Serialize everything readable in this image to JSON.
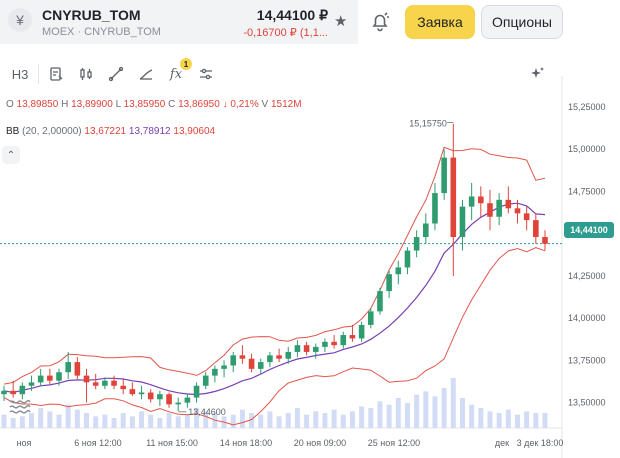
{
  "header": {
    "ticker": "CNYRUB_TOM",
    "exchange": "MOEX · CNYRUB_TOM",
    "price": "14,44100 ₽",
    "change": "-0,16700 ₽ (1,1...",
    "order_button": "Заявка",
    "options_button": "Опционы"
  },
  "toolbar": {
    "timeframe": "Н3",
    "indicator_badge": "1",
    "items": [
      "Н3",
      "draw-chart",
      "candles",
      "line-tool",
      "trend",
      "fx",
      "settings",
      "magic"
    ]
  },
  "ohlc": {
    "o_label": "O",
    "o": "13,89850",
    "h_label": "H",
    "h": "13,89900",
    "l_label": "L",
    "l": "13,85950",
    "c_label": "C",
    "c": "13,86950",
    "change": "↓ 0,21%",
    "v_label": "V",
    "v": "1512M"
  },
  "bb": {
    "label": "BB",
    "params": "(20, 2,00000)",
    "lower": "13,67221",
    "middle": "13,78912",
    "upper": "13,90604"
  },
  "price_tag": "14,44100",
  "annotations": {
    "high_label": "15,15750",
    "low_label": "13,44600"
  },
  "colors": {
    "up": "#2e9c6f",
    "down": "#e0433a",
    "bb_band": "#e0564d",
    "bb_mid": "#7a3fb3",
    "volume": "#d3dcf5",
    "current": "#2e9c8f",
    "order_btn": "#f8d34c"
  },
  "chart_data": {
    "type": "candlestick",
    "y_axis_ticks": [
      "15,25000",
      "15,00000",
      "14,75000",
      "14,50000",
      "14,25000",
      "14,00000",
      "13,75000",
      "13,50000"
    ],
    "y_range": [
      13.35,
      15.35
    ],
    "x_axis_ticks": [
      "ноя",
      "6 ноя 12:00",
      "11 ноя 15:00",
      "14 ноя 18:00",
      "20 ноя 09:00",
      "25 ноя 12:00",
      "дек",
      "3 дек 18:00"
    ],
    "current_price": 14.441,
    "candles": [
      [
        13.55,
        13.6,
        13.51,
        13.57
      ],
      [
        13.57,
        13.63,
        13.53,
        13.55
      ],
      [
        13.55,
        13.62,
        13.52,
        13.6
      ],
      [
        13.6,
        13.66,
        13.57,
        13.62
      ],
      [
        13.62,
        13.7,
        13.6,
        13.66
      ],
      [
        13.66,
        13.7,
        13.61,
        13.63
      ],
      [
        13.63,
        13.7,
        13.6,
        13.68
      ],
      [
        13.68,
        13.8,
        13.64,
        13.74
      ],
      [
        13.74,
        13.77,
        13.64,
        13.66
      ],
      [
        13.66,
        13.7,
        13.5,
        13.62
      ],
      [
        13.62,
        13.67,
        13.58,
        13.6
      ],
      [
        13.6,
        13.65,
        13.58,
        13.63
      ],
      [
        13.63,
        13.66,
        13.58,
        13.6
      ],
      [
        13.6,
        13.64,
        13.55,
        13.58
      ],
      [
        13.58,
        13.62,
        13.54,
        13.55
      ],
      [
        13.55,
        13.6,
        13.52,
        13.56
      ],
      [
        13.56,
        13.58,
        13.5,
        13.52
      ],
      [
        13.52,
        13.57,
        13.48,
        13.55
      ],
      [
        13.55,
        13.56,
        13.47,
        13.49
      ],
      [
        13.49,
        13.53,
        13.45,
        13.5
      ],
      [
        13.5,
        13.55,
        13.47,
        13.53
      ],
      [
        13.53,
        13.62,
        13.5,
        13.6
      ],
      [
        13.6,
        13.68,
        13.58,
        13.66
      ],
      [
        13.66,
        13.72,
        13.62,
        13.7
      ],
      [
        13.7,
        13.75,
        13.65,
        13.72
      ],
      [
        13.72,
        13.8,
        13.68,
        13.78
      ],
      [
        13.78,
        13.84,
        13.73,
        13.76
      ],
      [
        13.76,
        13.79,
        13.68,
        13.7
      ],
      [
        13.7,
        13.76,
        13.67,
        13.74
      ],
      [
        13.74,
        13.8,
        13.71,
        13.78
      ],
      [
        13.78,
        13.82,
        13.74,
        13.76
      ],
      [
        13.76,
        13.83,
        13.73,
        13.8
      ],
      [
        13.8,
        13.87,
        13.77,
        13.84
      ],
      [
        13.84,
        13.86,
        13.78,
        13.8
      ],
      [
        13.8,
        13.85,
        13.76,
        13.83
      ],
      [
        13.83,
        13.88,
        13.8,
        13.86
      ],
      [
        13.86,
        13.9,
        13.82,
        13.84
      ],
      [
        13.84,
        13.92,
        13.82,
        13.9
      ],
      [
        13.9,
        13.96,
        13.86,
        13.88
      ],
      [
        13.88,
        13.98,
        13.86,
        13.96
      ],
      [
        13.96,
        14.06,
        13.94,
        14.04
      ],
      [
        14.04,
        14.18,
        14.02,
        14.16
      ],
      [
        14.16,
        14.28,
        14.12,
        14.26
      ],
      [
        14.26,
        14.34,
        14.2,
        14.3
      ],
      [
        14.3,
        14.42,
        14.26,
        14.4
      ],
      [
        14.4,
        14.52,
        14.36,
        14.48
      ],
      [
        14.48,
        14.62,
        14.44,
        14.56
      ],
      [
        14.56,
        14.8,
        14.52,
        14.74
      ],
      [
        14.74,
        15.0,
        14.7,
        14.95
      ],
      [
        14.95,
        15.15,
        14.25,
        14.48
      ],
      [
        14.48,
        14.7,
        14.4,
        14.66
      ],
      [
        14.66,
        14.8,
        14.58,
        14.72
      ],
      [
        14.72,
        14.78,
        14.6,
        14.68
      ],
      [
        14.68,
        14.76,
        14.52,
        14.6
      ],
      [
        14.6,
        14.74,
        14.55,
        14.7
      ],
      [
        14.7,
        14.78,
        14.62,
        14.65
      ],
      [
        14.65,
        14.7,
        14.56,
        14.62
      ],
      [
        14.62,
        14.66,
        14.52,
        14.58
      ],
      [
        14.58,
        14.62,
        14.44,
        14.48
      ],
      [
        14.48,
        14.52,
        14.4,
        14.44
      ]
    ],
    "volume": [
      8,
      6,
      7,
      9,
      12,
      10,
      8,
      14,
      11,
      9,
      7,
      8,
      6,
      9,
      7,
      10,
      8,
      6,
      9,
      7,
      8,
      12,
      10,
      9,
      7,
      8,
      11,
      9,
      8,
      10,
      7,
      9,
      12,
      8,
      10,
      9,
      11,
      8,
      10,
      13,
      12,
      16,
      14,
      18,
      15,
      20,
      22,
      19,
      24,
      30,
      18,
      14,
      12,
      10,
      9,
      11,
      8,
      10,
      9,
      9
    ]
  }
}
